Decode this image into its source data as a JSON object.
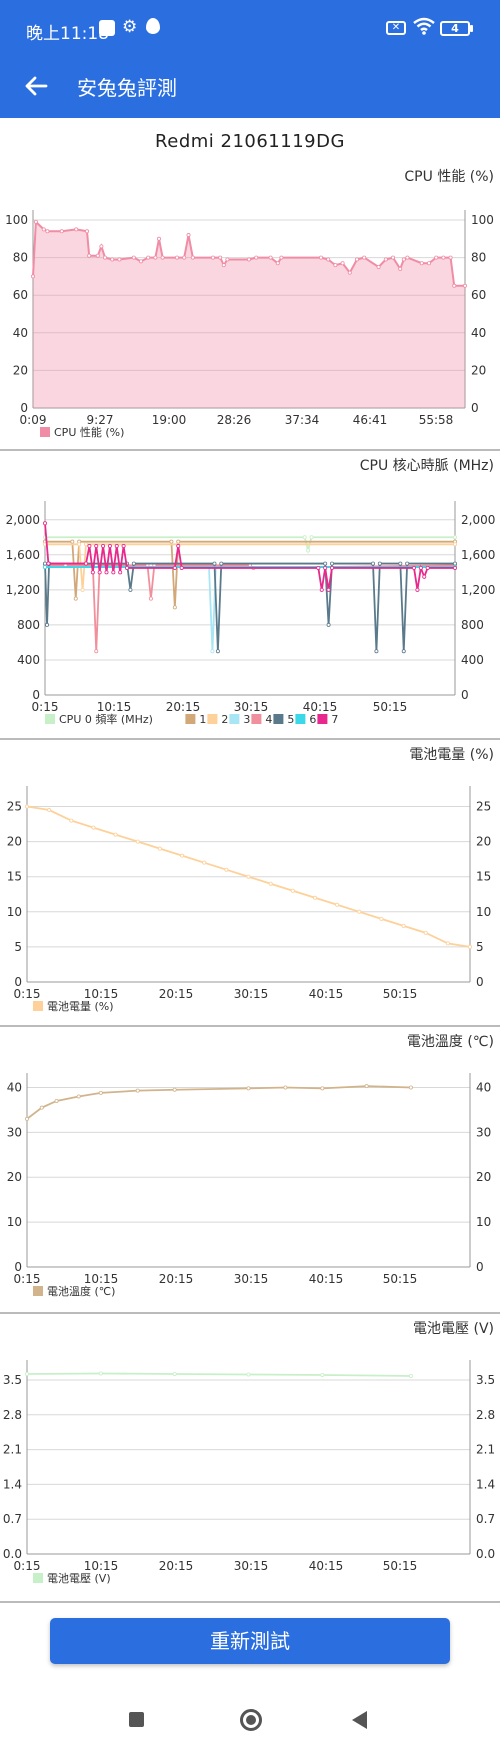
{
  "status_bar": {
    "time": "晚上11:18",
    "sim_badge": "✕",
    "battery": "4"
  },
  "app_bar": {
    "title": "安兔兔評測"
  },
  "device_name": "Redmi 21061119DG",
  "retest_button": "重新測試",
  "colors": {
    "primary": "#2a6ee0",
    "cpu_perf": "#f08ca5",
    "battery": "#fdd199",
    "temp": "#d2b48c",
    "voltage": "#c8f0c8"
  },
  "chart_data": [
    {
      "type": "area",
      "title": "CPU 性能 (%)",
      "x_tick_labels": [
        "0:09",
        "9:27",
        "19:00",
        "28:26",
        "37:34",
        "46:41",
        "55:58"
      ],
      "y_tick_labels": [
        "0",
        "20",
        "40",
        "60",
        "80",
        "100"
      ],
      "ylim": [
        0,
        100
      ],
      "legend": [
        {
          "label": "CPU 性能 (%)",
          "color": "#f08ca5"
        }
      ],
      "series": [
        {
          "name": "CPU 性能 (%)",
          "color": "#f08ca5",
          "values": [
            [
              0,
              70
            ],
            [
              0.4,
              99
            ],
            [
              1.5,
              95
            ],
            [
              2,
              94
            ],
            [
              4,
              94
            ],
            [
              6,
              95
            ],
            [
              7.5,
              94
            ],
            [
              7.8,
              81
            ],
            [
              9,
              81
            ],
            [
              9.5,
              86
            ],
            [
              10,
              80
            ],
            [
              11,
              79
            ],
            [
              12,
              79
            ],
            [
              14,
              80
            ],
            [
              15,
              78
            ],
            [
              16,
              80
            ],
            [
              17,
              80
            ],
            [
              17.5,
              90
            ],
            [
              18,
              80
            ],
            [
              20,
              80
            ],
            [
              21,
              80
            ],
            [
              21.6,
              92
            ],
            [
              22.2,
              80
            ],
            [
              25,
              80
            ],
            [
              26,
              80
            ],
            [
              26.5,
              76
            ],
            [
              27,
              79
            ],
            [
              30,
              79
            ],
            [
              31,
              80
            ],
            [
              33,
              80
            ],
            [
              34,
              77
            ],
            [
              34.5,
              80
            ],
            [
              40,
              80
            ],
            [
              41,
              79
            ],
            [
              42,
              76
            ],
            [
              43,
              77
            ],
            [
              44,
              72
            ],
            [
              45,
              79
            ],
            [
              46,
              80
            ],
            [
              48,
              75
            ],
            [
              49,
              79
            ],
            [
              50,
              80
            ],
            [
              51,
              74
            ],
            [
              51.5,
              79
            ],
            [
              52,
              80
            ],
            [
              54,
              77
            ],
            [
              55,
              77
            ],
            [
              56,
              80
            ],
            [
              57,
              80
            ],
            [
              58,
              80
            ],
            [
              58.5,
              65
            ],
            [
              60,
              65
            ]
          ]
        }
      ],
      "x_range": [
        0,
        60
      ]
    },
    {
      "type": "line",
      "title": "CPU 核心時脈 (MHz)",
      "x_tick_labels": [
        "0:15",
        "10:15",
        "20:15",
        "30:15",
        "40:15",
        "50:15"
      ],
      "y_tick_labels": [
        "0",
        "400",
        "800",
        "1,200",
        "1,600",
        "2,000"
      ],
      "ylim": [
        0,
        2100
      ],
      "legend": [
        {
          "label": "CPU 0 頻率 (MHz)",
          "color": "#c8f0c8"
        },
        {
          "label": "1",
          "color": "#d2a878"
        },
        {
          "label": "2",
          "color": "#fdd199"
        },
        {
          "label": "3",
          "color": "#a8e6f5"
        },
        {
          "label": "4",
          "color": "#f0909c"
        },
        {
          "label": "5",
          "color": "#5a7a8c"
        },
        {
          "label": "6",
          "color": "#3ad8e8"
        },
        {
          "label": "7",
          "color": "#e8288c"
        }
      ],
      "series": [
        {
          "name": "CPU 0 頻率 (MHz)",
          "color": "#c8f0c8",
          "values": [
            [
              0,
              1800
            ],
            [
              38,
              1800
            ],
            [
              38.5,
              1650
            ],
            [
              39,
              1800
            ],
            [
              60,
              1800
            ]
          ]
        },
        {
          "name": "1",
          "color": "#d2a878",
          "values": [
            [
              0,
              1750
            ],
            [
              4,
              1750
            ],
            [
              4.5,
              1100
            ],
            [
              5,
              1750
            ],
            [
              18.5,
              1750
            ],
            [
              19,
              1000
            ],
            [
              19.5,
              1750
            ],
            [
              60,
              1750
            ]
          ]
        },
        {
          "name": "2",
          "color": "#fdd199",
          "values": [
            [
              0,
              1720
            ],
            [
              5,
              1720
            ],
            [
              5.5,
              1200
            ],
            [
              6,
              1720
            ],
            [
              60,
              1720
            ]
          ]
        },
        {
          "name": "3",
          "color": "#a8e6f5",
          "values": [
            [
              0,
              1460
            ],
            [
              24,
              1460
            ],
            [
              24.5,
              500
            ],
            [
              25,
              1460
            ],
            [
              60,
              1460
            ]
          ]
        },
        {
          "name": "4",
          "color": "#f0909c",
          "values": [
            [
              0,
              1480
            ],
            [
              3,
              1480
            ],
            [
              7,
              1480
            ],
            [
              7.5,
              500
            ],
            [
              8,
              1480
            ],
            [
              15,
              1480
            ],
            [
              15.5,
              1100
            ],
            [
              16,
              1480
            ],
            [
              30,
              1480
            ],
            [
              30.5,
              1450
            ],
            [
              60,
              1480
            ]
          ]
        },
        {
          "name": "5",
          "color": "#5a7a8c",
          "values": [
            [
              0,
              1500
            ],
            [
              0.3,
              800
            ],
            [
              0.6,
              1500
            ],
            [
              12,
              1500
            ],
            [
              12.5,
              1200
            ],
            [
              13,
              1500
            ],
            [
              24.8,
              1500
            ],
            [
              25.3,
              500
            ],
            [
              25.8,
              1500
            ],
            [
              41,
              1500
            ],
            [
              41.5,
              800
            ],
            [
              42,
              1500
            ],
            [
              48,
              1500
            ],
            [
              48.5,
              500
            ],
            [
              49,
              1500
            ],
            [
              52,
              1500
            ],
            [
              52.5,
              500
            ],
            [
              53,
              1500
            ],
            [
              60,
              1500
            ]
          ]
        },
        {
          "name": "6",
          "color": "#3ad8e8",
          "values": [
            [
              0,
              1460
            ],
            [
              60,
              1460
            ]
          ]
        },
        {
          "name": "7",
          "color": "#e8288c",
          "values": [
            [
              0,
              1960
            ],
            [
              0.5,
              1500
            ],
            [
              6,
              1500
            ],
            [
              6.5,
              1700
            ],
            [
              7,
              1400
            ],
            [
              7.5,
              1700
            ],
            [
              8,
              1400
            ],
            [
              8.5,
              1700
            ],
            [
              9,
              1400
            ],
            [
              9.5,
              1700
            ],
            [
              10,
              1400
            ],
            [
              10.5,
              1700
            ],
            [
              11,
              1400
            ],
            [
              11.5,
              1700
            ],
            [
              12,
              1450
            ],
            [
              19,
              1450
            ],
            [
              19.5,
              1700
            ],
            [
              20,
              1450
            ],
            [
              40,
              1450
            ],
            [
              40.5,
              1200
            ],
            [
              41,
              1450
            ],
            [
              41.5,
              1200
            ],
            [
              42,
              1450
            ],
            [
              54,
              1450
            ],
            [
              54.5,
              1200
            ],
            [
              55,
              1450
            ],
            [
              55.5,
              1350
            ],
            [
              56,
              1450
            ],
            [
              60,
              1450
            ]
          ]
        }
      ],
      "x_range": [
        0,
        60
      ]
    },
    {
      "type": "line",
      "title": "電池電量 (%)",
      "x_tick_labels": [
        "0:15",
        "10:15",
        "20:15",
        "30:15",
        "40:15",
        "50:15"
      ],
      "y_tick_labels": [
        "0",
        "5",
        "10",
        "15",
        "20",
        "25"
      ],
      "ylim": [
        0,
        26.5
      ],
      "legend": [
        {
          "label": "電池電量 (%)",
          "color": "#fdd199"
        }
      ],
      "series": [
        {
          "name": "電池電量 (%)",
          "color": "#fdd199",
          "values": [
            [
              0,
              25
            ],
            [
              3,
              24.5
            ],
            [
              6,
              23
            ],
            [
              9,
              22
            ],
            [
              12,
              21
            ],
            [
              15,
              20
            ],
            [
              18,
              19
            ],
            [
              21,
              18
            ],
            [
              24,
              17
            ],
            [
              27,
              16
            ],
            [
              30,
              15
            ],
            [
              33,
              14
            ],
            [
              36,
              13
            ],
            [
              39,
              12
            ],
            [
              42,
              11
            ],
            [
              45,
              10
            ],
            [
              48,
              9
            ],
            [
              51,
              8
            ],
            [
              54,
              7
            ],
            [
              57,
              5.5
            ],
            [
              60,
              5
            ]
          ]
        }
      ],
      "x_range": [
        0,
        60
      ]
    },
    {
      "type": "line",
      "title": "電池溫度 (℃)",
      "x_tick_labels": [
        "0:15",
        "10:15",
        "20:15",
        "30:15",
        "40:15",
        "50:15"
      ],
      "y_tick_labels": [
        "0",
        "10",
        "20",
        "30",
        "40"
      ],
      "ylim": [
        0,
        41
      ],
      "legend": [
        {
          "label": "電池溫度 (℃)",
          "color": "#d2b48c"
        }
      ],
      "series": [
        {
          "name": "電池溫度 (℃)",
          "color": "#d2b48c",
          "values": [
            [
              0,
              33
            ],
            [
              2,
              35.5
            ],
            [
              4,
              37
            ],
            [
              7,
              38
            ],
            [
              10,
              38.8
            ],
            [
              15,
              39.3
            ],
            [
              20,
              39.5
            ],
            [
              30,
              39.8
            ],
            [
              35,
              40
            ],
            [
              40,
              39.8
            ],
            [
              46,
              40.3
            ],
            [
              52,
              40
            ]
          ]
        }
      ],
      "x_range": [
        0,
        60
      ]
    },
    {
      "type": "line",
      "title": "電池電壓 (V)",
      "x_tick_labels": [
        "0:15",
        "10:15",
        "20:15",
        "30:15",
        "40:15",
        "50:15"
      ],
      "y_tick_labels": [
        "0.0",
        "0.7",
        "1.4",
        "2.1",
        "2.8",
        "3.5"
      ],
      "ylim": [
        0,
        3.7
      ],
      "legend": [
        {
          "label": "電池電壓 (V)",
          "color": "#c8f0c8"
        }
      ],
      "series": [
        {
          "name": "電池電壓 (V)",
          "color": "#c8f0c8",
          "values": [
            [
              0,
              3.62
            ],
            [
              10,
              3.63
            ],
            [
              20,
              3.62
            ],
            [
              30,
              3.61
            ],
            [
              40,
              3.6
            ],
            [
              52,
              3.58
            ]
          ]
        }
      ],
      "x_range": [
        0,
        60
      ]
    }
  ]
}
